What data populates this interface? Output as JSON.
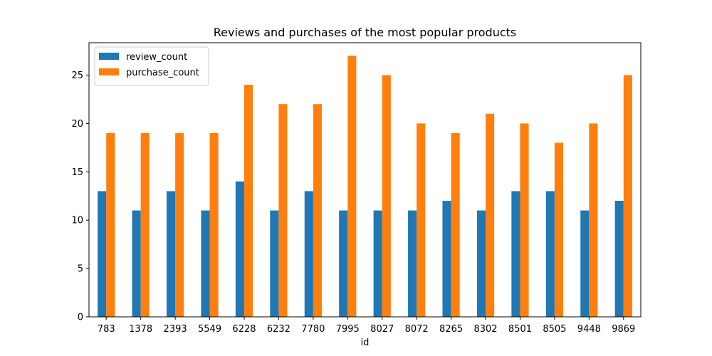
{
  "chart_data": {
    "type": "bar",
    "title": "Reviews and purchases of the most popular products",
    "xlabel": "id",
    "ylabel": "",
    "categories": [
      "783",
      "1378",
      "2393",
      "5549",
      "6228",
      "6232",
      "7780",
      "7995",
      "8027",
      "8072",
      "8265",
      "8302",
      "8501",
      "8505",
      "9448",
      "9869"
    ],
    "series": [
      {
        "name": "review_count",
        "color": "#1f77b4",
        "values": [
          13,
          11,
          13,
          11,
          14,
          11,
          13,
          11,
          11,
          11,
          12,
          11,
          13,
          13,
          11,
          12
        ]
      },
      {
        "name": "purchase_count",
        "color": "#ff7f0e",
        "values": [
          19,
          19,
          19,
          19,
          24,
          22,
          22,
          27,
          25,
          20,
          19,
          21,
          20,
          18,
          20,
          25
        ]
      }
    ],
    "ylim": [
      0,
      28.35
    ],
    "yticks": [
      0,
      5,
      10,
      15,
      20,
      25
    ],
    "grid": false,
    "legend_position": "top-left"
  }
}
